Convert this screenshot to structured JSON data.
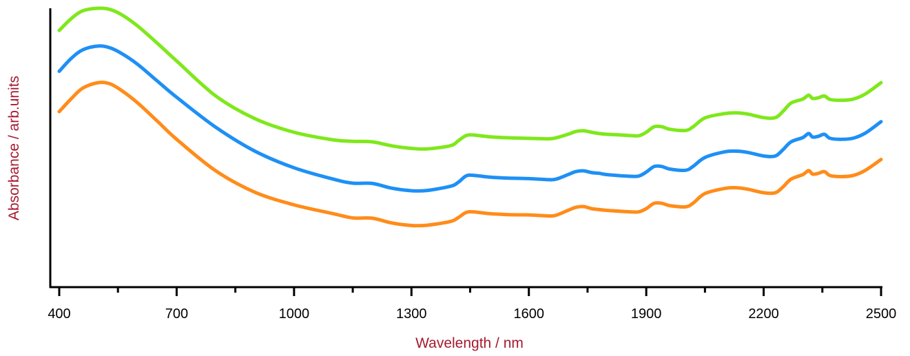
{
  "chart_data": {
    "type": "line",
    "title": "",
    "xlabel": "Wavelength / nm",
    "ylabel": "Absorbance / arb.units",
    "xlim": [
      400,
      2500
    ],
    "ylim": [
      0,
      1
    ],
    "x_ticks": [
      400,
      700,
      1000,
      1300,
      1600,
      1900,
      2200,
      2500
    ],
    "x_minor_ticks": [
      550,
      850,
      1150,
      1450,
      1750,
      2050,
      2350
    ],
    "y_ticks": [],
    "grid": false,
    "legend": "none",
    "axis_label_color": "#A6192E",
    "series": [
      {
        "color": "#7FE81C",
        "x": [
          400,
          430,
          460,
          500,
          530,
          560,
          600,
          650,
          700,
          800,
          900,
          1000,
          1100,
          1150,
          1200,
          1250,
          1300,
          1340,
          1400,
          1420,
          1440,
          1460,
          1500,
          1550,
          1600,
          1650,
          1670,
          1700,
          1720,
          1740,
          1760,
          1780,
          1800,
          1850,
          1880,
          1900,
          1920,
          1940,
          1960,
          2000,
          2020,
          2050,
          2100,
          2130,
          2160,
          2200,
          2230,
          2250,
          2270,
          2300,
          2315,
          2325,
          2340,
          2355,
          2370,
          2400,
          2430,
          2460,
          2500
        ],
        "y": [
          0.912,
          0.958,
          0.99,
          1.0,
          0.995,
          0.974,
          0.93,
          0.862,
          0.791,
          0.652,
          0.562,
          0.508,
          0.478,
          0.472,
          0.47,
          0.454,
          0.444,
          0.442,
          0.455,
          0.475,
          0.495,
          0.497,
          0.49,
          0.486,
          0.484,
          0.482,
          0.486,
          0.5,
          0.511,
          0.514,
          0.508,
          0.503,
          0.5,
          0.496,
          0.494,
          0.508,
          0.53,
          0.53,
          0.52,
          0.515,
          0.53,
          0.565,
          0.582,
          0.585,
          0.58,
          0.566,
          0.566,
          0.592,
          0.624,
          0.64,
          0.655,
          0.642,
          0.645,
          0.652,
          0.638,
          0.635,
          0.64,
          0.66,
          0.705
        ]
      },
      {
        "color": "#1E90F5",
        "x": [
          400,
          430,
          460,
          500,
          530,
          560,
          600,
          650,
          700,
          800,
          900,
          1000,
          1100,
          1150,
          1200,
          1250,
          1300,
          1340,
          1400,
          1420,
          1440,
          1460,
          1500,
          1550,
          1600,
          1650,
          1670,
          1700,
          1720,
          1740,
          1760,
          1780,
          1800,
          1850,
          1880,
          1900,
          1920,
          1940,
          1960,
          2000,
          2020,
          2050,
          2100,
          2130,
          2160,
          2200,
          2230,
          2250,
          2270,
          2300,
          2315,
          2325,
          2340,
          2355,
          2370,
          2400,
          2430,
          2460,
          2500
        ],
        "y": [
          0.75,
          0.8,
          0.835,
          0.85,
          0.843,
          0.82,
          0.778,
          0.712,
          0.647,
          0.528,
          0.433,
          0.367,
          0.322,
          0.306,
          0.305,
          0.286,
          0.276,
          0.277,
          0.294,
          0.31,
          0.335,
          0.337,
          0.33,
          0.326,
          0.324,
          0.32,
          0.322,
          0.34,
          0.352,
          0.355,
          0.348,
          0.345,
          0.34,
          0.334,
          0.334,
          0.35,
          0.372,
          0.372,
          0.362,
          0.357,
          0.373,
          0.408,
          0.43,
          0.433,
          0.428,
          0.414,
          0.414,
          0.44,
          0.47,
          0.487,
          0.503,
          0.489,
          0.492,
          0.5,
          0.484,
          0.48,
          0.485,
          0.505,
          0.55
        ]
      },
      {
        "color": "#FF8C1A",
        "x": [
          400,
          430,
          460,
          500,
          530,
          560,
          600,
          650,
          700,
          800,
          900,
          1000,
          1100,
          1150,
          1200,
          1250,
          1300,
          1340,
          1400,
          1420,
          1440,
          1460,
          1500,
          1550,
          1600,
          1650,
          1670,
          1700,
          1720,
          1740,
          1760,
          1780,
          1800,
          1850,
          1880,
          1900,
          1920,
          1940,
          1960,
          2000,
          2020,
          2050,
          2100,
          2130,
          2160,
          2200,
          2230,
          2250,
          2270,
          2300,
          2315,
          2325,
          2340,
          2355,
          2370,
          2400,
          2430,
          2460,
          2500
        ],
        "y": [
          0.59,
          0.64,
          0.683,
          0.705,
          0.7,
          0.673,
          0.625,
          0.553,
          0.48,
          0.355,
          0.27,
          0.22,
          0.185,
          0.168,
          0.167,
          0.148,
          0.138,
          0.139,
          0.154,
          0.17,
          0.19,
          0.192,
          0.185,
          0.181,
          0.18,
          0.176,
          0.179,
          0.198,
          0.21,
          0.213,
          0.205,
          0.201,
          0.198,
          0.193,
          0.192,
          0.205,
          0.226,
          0.226,
          0.217,
          0.212,
          0.227,
          0.265,
          0.285,
          0.288,
          0.282,
          0.268,
          0.268,
          0.292,
          0.322,
          0.34,
          0.356,
          0.342,
          0.345,
          0.352,
          0.336,
          0.332,
          0.337,
          0.357,
          0.4
        ]
      }
    ]
  }
}
